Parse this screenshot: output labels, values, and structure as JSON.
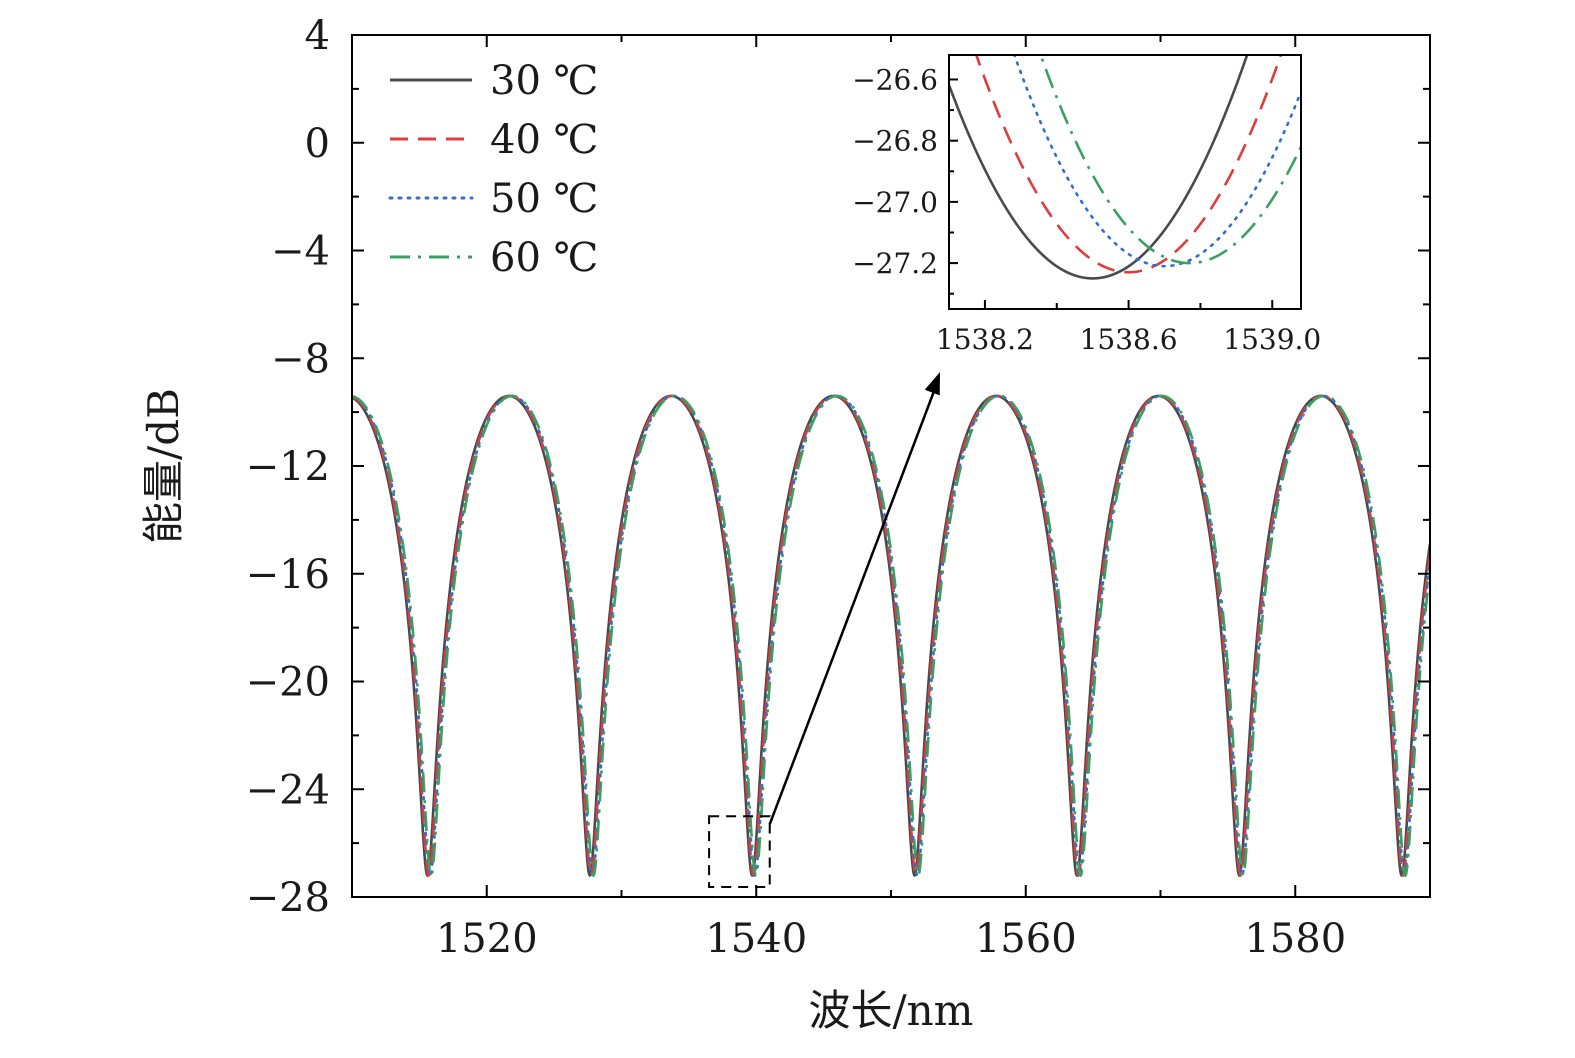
{
  "chart_data": [
    {
      "id": "main",
      "type": "line",
      "xlabel": "波长/nm",
      "ylabel": "能量/dB",
      "xlim": [
        1510,
        1590
      ],
      "ylim": [
        -28,
        4
      ],
      "xticks": [
        1520,
        1540,
        1560,
        1580
      ],
      "xtick_labels": [
        "1520",
        "1540",
        "1560",
        "1580"
      ],
      "yticks": [
        4,
        0,
        -4,
        -8,
        -12,
        -16,
        -20,
        -24,
        -28
      ],
      "ytick_labels": [
        "4",
        "0",
        "−4",
        "−8",
        "−12",
        "−16",
        "−20",
        "−24",
        "−28"
      ],
      "grid": false,
      "legend_position": "top-left",
      "model": {
        "description": "periodic interference dips, peak ≈ -9.4 dB, dip ≈ -27.2 dB",
        "period_nm": 12.05,
        "dip_base_nm": 1515.6,
        "peak_db": -9.4,
        "dip_db": -27.2
      },
      "series": [
        {
          "name": "30 ℃",
          "shift_nm": 0.0,
          "color": "#4a4a4a",
          "dash": "solid"
        },
        {
          "name": "40 ℃",
          "shift_nm": 0.1,
          "color": "#e03c3c",
          "dash": "dashed"
        },
        {
          "name": "50 ℃",
          "shift_nm": 0.2,
          "color": "#2f6fd0",
          "dash": "dotted"
        },
        {
          "name": "60 ℃",
          "shift_nm": 0.27,
          "color": "#3aa060",
          "dash": "dashdot"
        }
      ],
      "dip_minima_nm": [
        1515.6,
        1527.2,
        1538.5,
        1550.6,
        1562.6,
        1574.7,
        1587.5
      ],
      "zoom_box": {
        "x": [
          1536.5,
          1541
        ],
        "y": [
          -28,
          -25
        ]
      }
    },
    {
      "id": "inset",
      "type": "line",
      "xlim": [
        1538.1,
        1539.08
      ],
      "ylim": [
        -27.35,
        -26.52
      ],
      "xticks": [
        1538.2,
        1538.6,
        1539.0
      ],
      "xtick_labels": [
        "1538.2",
        "1538.6",
        "1539.0"
      ],
      "xticks_minor": [
        1538.4,
        1538.8
      ],
      "yticks": [
        -26.6,
        -26.8,
        -27.0,
        -27.2
      ],
      "ytick_labels": [
        "−26.6",
        "−26.8",
        "−27.0",
        "−27.2"
      ],
      "series": [
        {
          "name": "30 ℃",
          "min_x": 1538.5,
          "min_y": -27.25,
          "color": "#4a4a4a",
          "dash": "solid"
        },
        {
          "name": "40 ℃",
          "min_x": 1538.6,
          "min_y": -27.23,
          "color": "#e03c3c",
          "dash": "dashed"
        },
        {
          "name": "50 ℃",
          "min_x": 1538.7,
          "min_y": -27.21,
          "color": "#2f6fd0",
          "dash": "dotted"
        },
        {
          "name": "60 ℃",
          "min_x": 1538.77,
          "min_y": -27.2,
          "color": "#3aa060",
          "dash": "dashdot"
        }
      ]
    }
  ]
}
